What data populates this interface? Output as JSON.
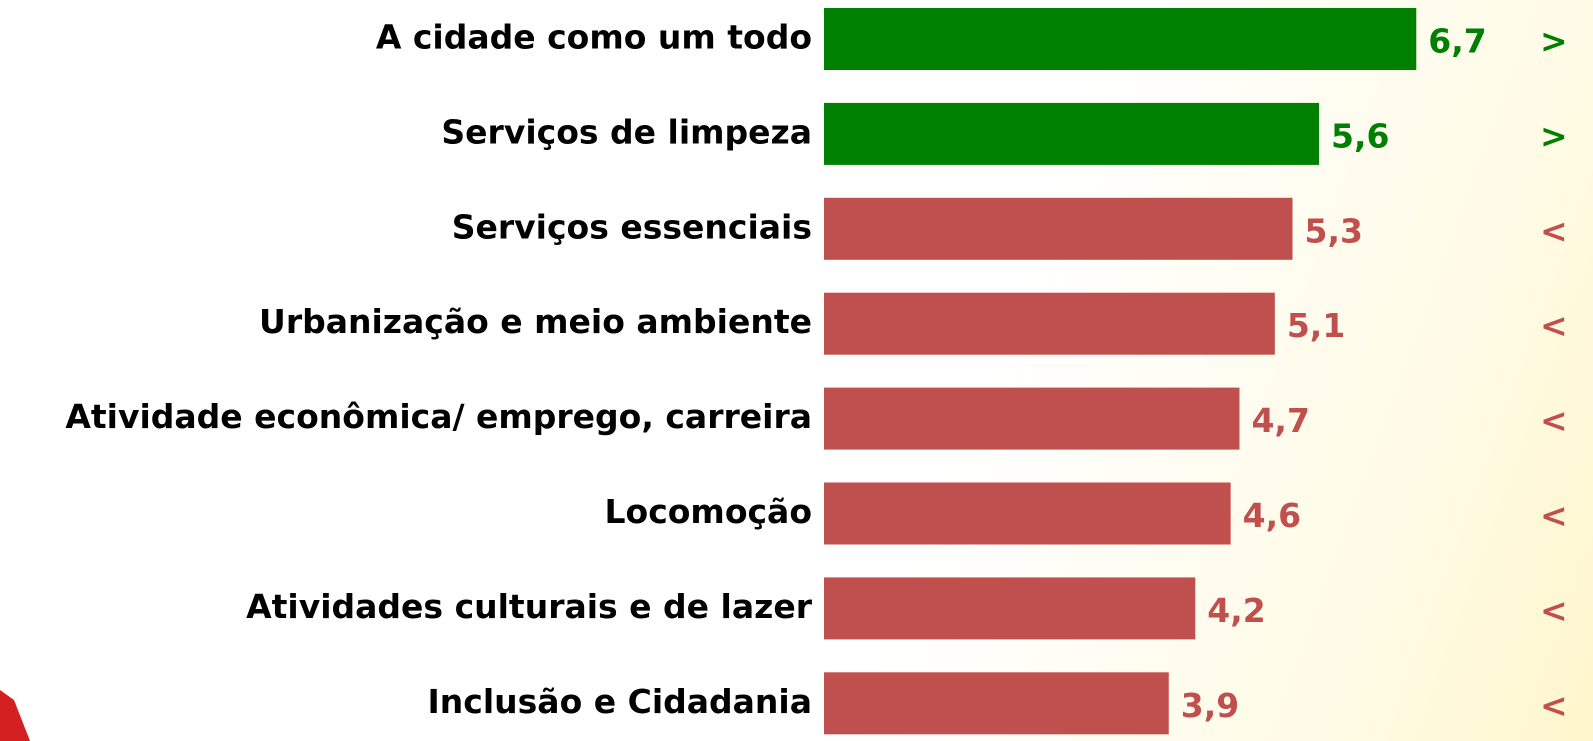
{
  "chart_data": {
    "type": "bar",
    "categories": [
      "A cidade como um todo",
      "Serviços de limpeza",
      "Serviços essenciais",
      "Urbanização e meio ambiente",
      "Atividade econômica/ emprego, carreira",
      "Locomoção",
      "Atividades culturais e de lazer",
      "Inclusão e Cidadania"
    ],
    "values": [
      6.7,
      5.6,
      5.3,
      5.1,
      4.7,
      4.6,
      4.2,
      3.9
    ],
    "value_labels": [
      "6,7",
      "5,6",
      "5,3",
      "5,1",
      "4,7",
      "4,6",
      "4,2",
      "3,9"
    ],
    "colors": [
      "#008000",
      "#008000",
      "#c0504d",
      "#c0504d",
      "#c0504d",
      "#c0504d",
      "#c0504d",
      "#c0504d"
    ],
    "indicators": [
      ">",
      ">",
      "<",
      "<",
      "<",
      "<",
      "<",
      "<"
    ]
  }
}
